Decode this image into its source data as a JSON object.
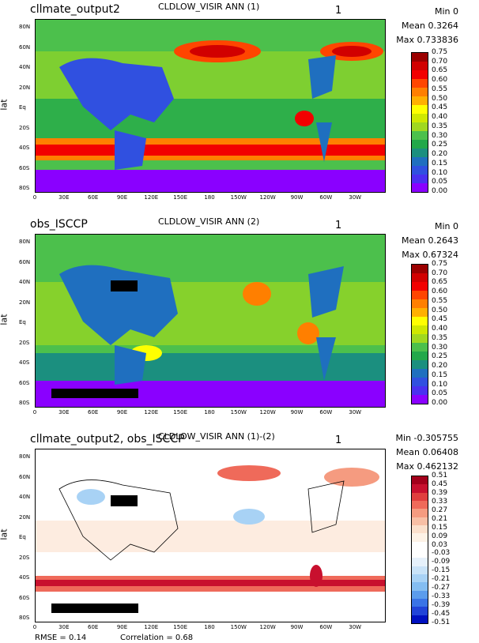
{
  "panels": [
    {
      "case": "cllmate_output2",
      "title": "CLDLOW_VISIR ANN (1)",
      "num": "1",
      "min": "Min 0",
      "mean": "Mean 0.3264",
      "max": "Max 0.733836",
      "ylabel": "lat",
      "colorbar_labels": [
        "0.75",
        "0.70",
        "0.65",
        "0.60",
        "0.55",
        "0.50",
        "0.45",
        "0.40",
        "0.35",
        "0.30",
        "0.25",
        "0.20",
        "0.15",
        "0.10",
        "0.05",
        "0.00"
      ],
      "colors": [
        "#9b0000",
        "#d10000",
        "#f20000",
        "#ff4500",
        "#ff7f00",
        "#ffb000",
        "#ffff00",
        "#cfe800",
        "#a0d820",
        "#4cc04c",
        "#22a84a",
        "#1b8f7f",
        "#1f6fbf",
        "#3050e0",
        "#4a30f0",
        "#8a00ff"
      ]
    },
    {
      "case": "obs_ISCCP",
      "title": "CLDLOW_VISIR ANN (2)",
      "num": "1",
      "min": "Min 0",
      "mean": "Mean 0.2643",
      "max": "Max 0.67324",
      "ylabel": "lat",
      "colorbar_labels": [
        "0.75",
        "0.70",
        "0.65",
        "0.60",
        "0.55",
        "0.50",
        "0.45",
        "0.40",
        "0.35",
        "0.30",
        "0.25",
        "0.20",
        "0.15",
        "0.10",
        "0.05",
        "0.00"
      ],
      "colors": [
        "#9b0000",
        "#d10000",
        "#f20000",
        "#ff4500",
        "#ff7f00",
        "#ffb000",
        "#ffff00",
        "#cfe800",
        "#a0d820",
        "#4cc04c",
        "#22a84a",
        "#1b8f7f",
        "#1f6fbf",
        "#3050e0",
        "#4a30f0",
        "#8a00ff"
      ]
    },
    {
      "case": "cllmate_output2, obs_ISCCP",
      "title": "CLDLOW_VISIR ANN (1)-(2)",
      "num": "1",
      "min": "Min -0.305755",
      "mean": "Mean 0.06408",
      "max": "Max 0.462132",
      "ylabel": "lat",
      "colorbar_labels": [
        "0.51",
        "0.45",
        "0.39",
        "0.33",
        "0.27",
        "0.21",
        "0.15",
        "0.09",
        "0.03",
        "-0.03",
        "-0.09",
        "-0.15",
        "-0.21",
        "-0.27",
        "-0.33",
        "-0.39",
        "-0.45",
        "-0.51"
      ],
      "colors": [
        "#a3001b",
        "#c8102e",
        "#e03e3e",
        "#ef6a5a",
        "#f59b80",
        "#f8bfa5",
        "#fbe0cc",
        "#fdf2e6",
        "#ffffff",
        "#ffffff",
        "#e6f1fb",
        "#c9e3f8",
        "#a8d2f5",
        "#84bdf1",
        "#5b9cec",
        "#3a74e6",
        "#2144d8",
        "#0010c0"
      ]
    }
  ],
  "lat_ticks": [
    "80N",
    "60N",
    "40N",
    "20N",
    "Eq",
    "20S",
    "40S",
    "60S",
    "80S"
  ],
  "lon_ticks": [
    "0",
    "30E",
    "60E",
    "90E",
    "120E",
    "150E",
    "180",
    "150W",
    "120W",
    "90W",
    "60W",
    "30W"
  ],
  "footer": {
    "rmse": "RMSE = 0.14",
    "correlation": "Correlation = 0.68"
  },
  "chart_data": [
    {
      "type": "heatmap",
      "title": "CLDLOW_VISIR ANN (1)",
      "case": "cllmate_output2",
      "ylabel": "lat",
      "colorbar_range": [
        0.0,
        0.75
      ],
      "min": 0,
      "mean": 0.3264,
      "max": 0.733836
    },
    {
      "type": "heatmap",
      "title": "CLDLOW_VISIR ANN (2)",
      "case": "obs_ISCCP",
      "ylabel": "lat",
      "colorbar_range": [
        0.0,
        0.75
      ],
      "min": 0,
      "mean": 0.2643,
      "max": 0.67324
    },
    {
      "type": "heatmap",
      "title": "CLDLOW_VISIR ANN (1)-(2)",
      "case": "cllmate_output2, obs_ISCCP",
      "ylabel": "lat",
      "colorbar_range": [
        -0.51,
        0.51
      ],
      "min": -0.305755,
      "mean": 0.06408,
      "max": 0.462132,
      "rmse": 0.14,
      "correlation": 0.68
    }
  ]
}
